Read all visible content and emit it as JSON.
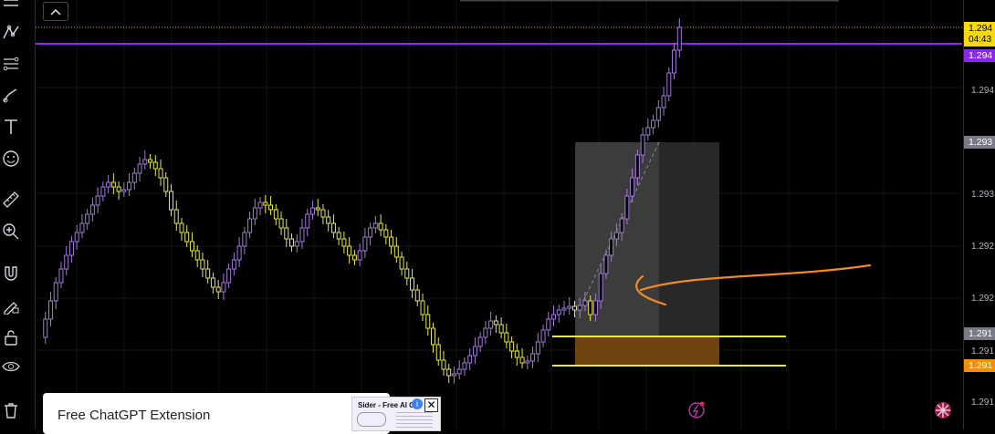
{
  "toolbar": {
    "tools": [
      "cursor-lines",
      "trend-line",
      "fib-tool",
      "brush",
      "text",
      "emoji",
      "ruler",
      "zoom",
      "magnet",
      "lock-drawing",
      "lock",
      "eye",
      "trash"
    ]
  },
  "chart": {
    "collapse_button_icon": "chevron-up-icon",
    "current_price": "1.294",
    "countdown": "04:43",
    "line_price": "1.294",
    "box_top_price": "1.293",
    "zone_top_price": "1.291",
    "zone_bottom_price": "1.291",
    "axis_labels": [
      "1.294",
      "1.293",
      "1.292",
      "1.292",
      "1.291",
      "1.291"
    ],
    "colors": {
      "bull": "#a47bd8",
      "bear": "#e8e84a",
      "purple_line": "#8a2be2",
      "yellow_tag": "#f5d90a",
      "orange_tag": "#ff8c00",
      "box_grey": "#3a3a3a",
      "zone_orange": "#7a4a10",
      "arrow_orange": "#f08a24"
    }
  },
  "popup": {
    "title": "Free ChatGPT Extension"
  },
  "ad": {
    "title": "Sider - Free AI C",
    "info_icon": "info-icon",
    "close_icon": "close-icon"
  },
  "bottom_icons": [
    "lightning-icon",
    "uk-flag-icon"
  ]
}
